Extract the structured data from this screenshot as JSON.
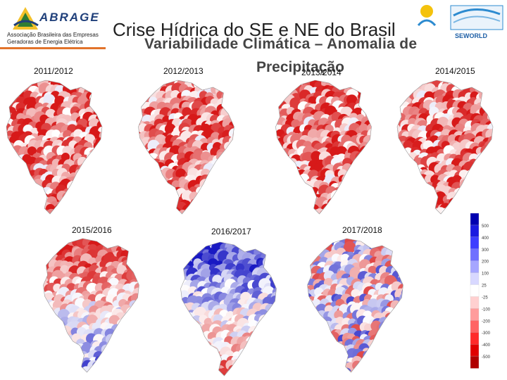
{
  "header": {
    "logo_word": "ABRAGE",
    "logo_line1": "Associação Brasileira das Empresas",
    "logo_line2": "Geradoras de Energia Elétrica",
    "title": "Crise Hídrica do SE e NE do Brasil",
    "subtitle_line1": "Variabilidade Climática – Anomalia de",
    "subtitle_line2": "Precipitação",
    "logo_right_text": "SEWORLD"
  },
  "maps": [
    {
      "year": "2011/2012",
      "pattern": "red"
    },
    {
      "year": "2012/2013",
      "pattern": "red"
    },
    {
      "year": "2013/2014",
      "pattern": "red"
    },
    {
      "year": "2014/2015",
      "pattern": "red"
    },
    {
      "year": "2015/2016",
      "pattern": "red-north-blue-south"
    },
    {
      "year": "2016/2017",
      "pattern": "blue-north-red-south"
    },
    {
      "year": "2017/2018",
      "pattern": "mixed"
    }
  ],
  "colorbar": {
    "labels": [
      "500",
      "400",
      "300",
      "200",
      "100",
      "25",
      "-25",
      "-100",
      "-200",
      "-300",
      "-400",
      "-500"
    ],
    "colors": [
      "#0000b0",
      "#1a1ae0",
      "#3d3dff",
      "#7070ff",
      "#a6a6ff",
      "#d8d8ff",
      "#ffffff",
      "#ffd0d0",
      "#ff9c9c",
      "#ff6464",
      "#ff2a2a",
      "#e00000",
      "#b00000"
    ]
  },
  "colors": {
    "title": "#222222",
    "accent": "#e2732a",
    "logo": "#1f3f7a"
  }
}
